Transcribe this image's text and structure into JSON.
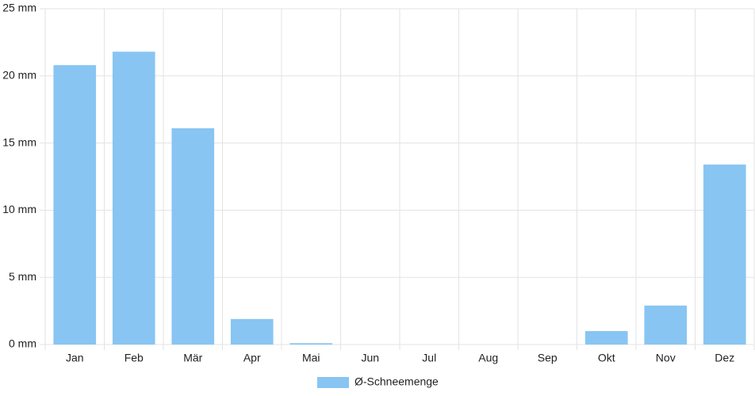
{
  "chart_data": {
    "type": "bar",
    "categories": [
      "Jan",
      "Feb",
      "Mär",
      "Apr",
      "Mai",
      "Jun",
      "Jul",
      "Aug",
      "Sep",
      "Okt",
      "Nov",
      "Dez"
    ],
    "series": [
      {
        "name": "Ø-Schneemenge",
        "color": "#88c5f2",
        "values": [
          20.8,
          21.8,
          16.1,
          1.9,
          0.1,
          0,
          0,
          0,
          0,
          1.0,
          2.9,
          13.4
        ]
      }
    ],
    "ylim": [
      0,
      25
    ],
    "yticks": [
      {
        "value": 0,
        "label": "0 mm"
      },
      {
        "value": 5,
        "label": "5 mm"
      },
      {
        "value": 10,
        "label": "10 mm"
      },
      {
        "value": 15,
        "label": "15 mm"
      },
      {
        "value": 20,
        "label": "20 mm"
      },
      {
        "value": 25,
        "label": "25 mm"
      }
    ],
    "grid": true,
    "legend": "bottom"
  }
}
